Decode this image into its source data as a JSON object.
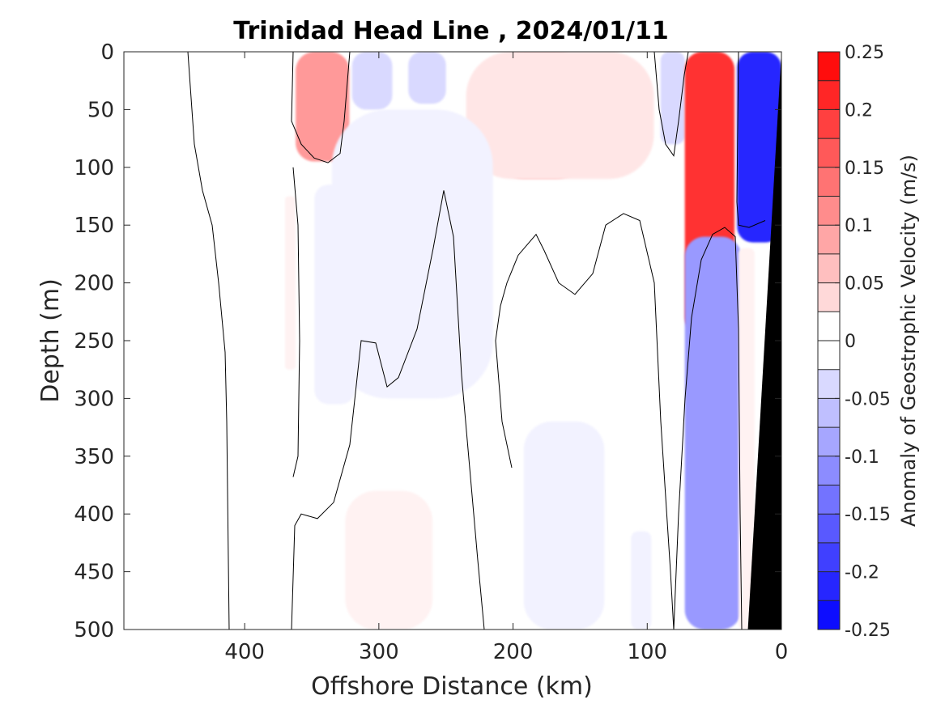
{
  "chart_data": {
    "type": "heatmap",
    "title": "Trinidad Head Line , 2024/01/11",
    "xlabel": "Offshore Distance (km)",
    "ylabel": "Depth (m)",
    "xlim": [
      490,
      0
    ],
    "ylim": [
      0,
      500
    ],
    "x_reversed": true,
    "y_reversed": true,
    "x_ticks": [
      400,
      300,
      200,
      100,
      0
    ],
    "x_tick_labels": [
      "400",
      "300",
      "200",
      "100",
      "0"
    ],
    "y_ticks": [
      0,
      50,
      100,
      150,
      200,
      250,
      300,
      350,
      400,
      450,
      500
    ],
    "y_tick_labels": [
      "0",
      "50",
      "100",
      "150",
      "200",
      "250",
      "300",
      "350",
      "400",
      "450",
      "500"
    ],
    "colorbar": {
      "label": "Anomaly of Geostrophic Velocity (m/s)",
      "ticks": [
        0.25,
        0.2,
        0.15,
        0.1,
        0.05,
        0,
        -0.05,
        -0.1,
        -0.15,
        -0.2,
        -0.25
      ],
      "tick_labels": [
        "0.25",
        "0.2",
        "0.15",
        "0.1",
        "0.05",
        "0",
        "-0.05",
        "-0.1",
        "-0.15",
        "-0.2",
        "-0.25"
      ],
      "range": [
        -0.25,
        0.25
      ],
      "levels": 20
    },
    "features": [
      {
        "kind": "positive",
        "level": 0.1,
        "x_range": [
          362,
          322
        ],
        "y_range": [
          0,
          95
        ]
      },
      {
        "kind": "negative",
        "level": -0.0375,
        "x_range": [
          320,
          290
        ],
        "y_range": [
          0,
          50
        ]
      },
      {
        "kind": "negative",
        "level": -0.0375,
        "x_range": [
          278,
          250
        ],
        "y_range": [
          0,
          45
        ]
      },
      {
        "kind": "positive",
        "level": 0.075,
        "x_range": [
          220,
          140
        ],
        "y_range": [
          0,
          110
        ]
      },
      {
        "kind": "positive",
        "level": 0.025,
        "x_range": [
          235,
          95
        ],
        "y_range": [
          0,
          110
        ]
      },
      {
        "kind": "negative",
        "level": -0.0375,
        "x_range": [
          90,
          72
        ],
        "y_range": [
          0,
          80
        ]
      },
      {
        "kind": "positive",
        "level": 0.2,
        "x_range": [
          72,
          35
        ],
        "y_range": [
          0,
          245
        ]
      },
      {
        "kind": "negative",
        "level": -0.2125,
        "x_range": [
          33,
          0
        ],
        "y_range": [
          0,
          165
        ]
      },
      {
        "kind": "negative",
        "level": -0.0125,
        "x_range": [
          348,
          318
        ],
        "y_range": [
          115,
          305
        ]
      },
      {
        "kind": "negative",
        "level": -0.0125,
        "x_range": [
          335,
          215
        ],
        "y_range": [
          50,
          300
        ]
      },
      {
        "kind": "positive",
        "level": 0.0125,
        "x_range": [
          370,
          362
        ],
        "y_range": [
          125,
          275
        ]
      },
      {
        "kind": "positive",
        "level": 0.0125,
        "x_range": [
          325,
          260
        ],
        "y_range": [
          380,
          500
        ]
      },
      {
        "kind": "negative",
        "level": -0.0125,
        "x_range": [
          192,
          132
        ],
        "y_range": [
          320,
          500
        ]
      },
      {
        "kind": "negative",
        "level": -0.0125,
        "x_range": [
          112,
          97
        ],
        "y_range": [
          415,
          500
        ]
      },
      {
        "kind": "negative",
        "level": -0.1,
        "x_range": [
          72,
          30
        ],
        "y_range": [
          160,
          500
        ]
      },
      {
        "kind": "positive",
        "level": 0.0125,
        "x_range": [
          32,
          20
        ],
        "y_range": [
          170,
          500
        ]
      }
    ],
    "bathymetry": {
      "polygon": [
        [
          0,
          0
        ],
        [
          0,
          500
        ],
        [
          25,
          500
        ]
      ],
      "color": "#000000"
    }
  }
}
